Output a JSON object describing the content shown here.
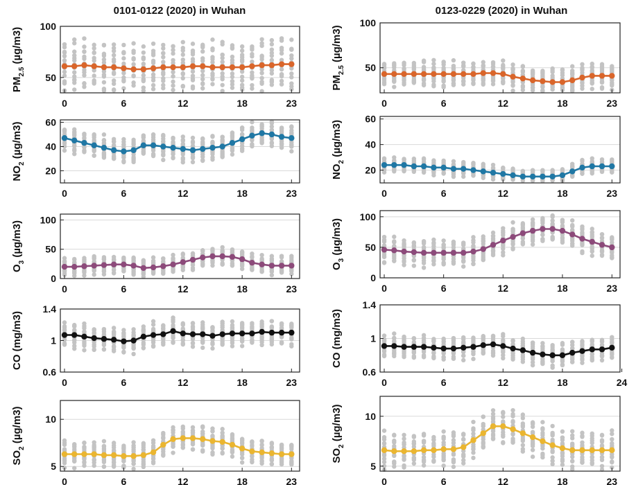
{
  "chart_data": [
    {
      "type": "line",
      "title": "0101-0122 (2020) in Wuhan",
      "ylabel_main": "PM",
      "ylabel_sub": "2.5",
      "ylabel_units": " (µg/m3)",
      "ylim": [
        35,
        100
      ],
      "yticks": [
        50,
        100
      ],
      "ytick_labels": [
        "50",
        "100"
      ],
      "xticks": [
        0,
        6,
        12,
        18,
        23
      ],
      "xtick_labels": [
        "0",
        "6",
        "12",
        "18",
        "23"
      ],
      "grid": true,
      "color": "#d9652a",
      "series": [
        {
          "x": [
            0,
            1,
            2,
            3,
            4,
            5,
            6,
            7,
            8,
            9,
            10,
            11,
            12,
            13,
            14,
            15,
            16,
            17,
            18,
            19,
            20,
            21,
            22,
            23
          ],
          "values": [
            61,
            61,
            62,
            61,
            60,
            60,
            59,
            58,
            58,
            59,
            60,
            60,
            60,
            61,
            61,
            60,
            60,
            60,
            60,
            61,
            62,
            62,
            63,
            63
          ]
        }
      ],
      "scatter_spread": 22
    },
    {
      "type": "line",
      "title": "0123-0229 (2020) in Wuhan",
      "ylabel_main": "PM",
      "ylabel_sub": "2.5",
      "ylabel_units": " (µg/m3)",
      "ylim": [
        22,
        100
      ],
      "yticks": [
        50,
        100
      ],
      "ytick_labels": [
        "50",
        "100"
      ],
      "xticks": [
        0,
        6,
        12,
        18,
        23
      ],
      "xtick_labels": [
        "0",
        "6",
        "12",
        "18",
        "23"
      ],
      "grid": true,
      "color": "#d9652a",
      "series": [
        {
          "x": [
            0,
            1,
            2,
            3,
            4,
            5,
            6,
            7,
            8,
            9,
            10,
            11,
            12,
            13,
            14,
            15,
            16,
            17,
            18,
            19,
            20,
            21,
            22,
            23
          ],
          "values": [
            43,
            43,
            43,
            43,
            43,
            43,
            43,
            43,
            43,
            43,
            44,
            44,
            43,
            40,
            38,
            36,
            35,
            34,
            34,
            36,
            39,
            41,
            41,
            41
          ]
        }
      ],
      "scatter_spread": 13
    },
    {
      "type": "line",
      "title": "",
      "ylabel_main": "NO",
      "ylabel_sub": "2",
      "ylabel_units": " (µg/m3)",
      "ylim": [
        10,
        62
      ],
      "yticks": [
        20,
        40,
        60
      ],
      "ytick_labels": [
        "20",
        "40",
        "60"
      ],
      "xticks": [
        0,
        6,
        12,
        18,
        23
      ],
      "xtick_labels": [
        "0",
        "6",
        "12",
        "18",
        "23"
      ],
      "grid": true,
      "color": "#1f77a4",
      "series": [
        {
          "x": [
            0,
            1,
            2,
            3,
            4,
            5,
            6,
            7,
            8,
            9,
            10,
            11,
            12,
            13,
            14,
            15,
            16,
            17,
            18,
            19,
            20,
            21,
            22,
            23
          ],
          "values": [
            47,
            45,
            43,
            41,
            39,
            37,
            36,
            37,
            41,
            41,
            40,
            39,
            38,
            37,
            38,
            39,
            40,
            43,
            46,
            49,
            51,
            50,
            48,
            47
          ]
        }
      ],
      "scatter_spread": 9
    },
    {
      "type": "line",
      "title": "",
      "ylabel_main": "NO",
      "ylabel_sub": "2",
      "ylabel_units": " (µg/m3)",
      "ylim": [
        10,
        62
      ],
      "yticks": [
        20,
        40,
        60
      ],
      "ytick_labels": [
        "20",
        "40",
        "60"
      ],
      "xticks": [
        0,
        6,
        12,
        18,
        23
      ],
      "xtick_labels": [
        "0",
        "6",
        "12",
        "18",
        "23"
      ],
      "grid": true,
      "color": "#1f77a4",
      "series": [
        {
          "x": [
            0,
            1,
            2,
            3,
            4,
            5,
            6,
            7,
            8,
            9,
            10,
            11,
            12,
            13,
            14,
            15,
            16,
            17,
            18,
            19,
            20,
            21,
            22,
            23
          ],
          "values": [
            24,
            24,
            24,
            23,
            23,
            22,
            22,
            21,
            21,
            20,
            19,
            18,
            17,
            16,
            15,
            15,
            15,
            15,
            16,
            19,
            22,
            23,
            23,
            23
          ]
        }
      ],
      "scatter_spread": 5
    },
    {
      "type": "line",
      "title": "",
      "ylabel_main": "O",
      "ylabel_sub": "3",
      "ylabel_units": " (µg/m3)",
      "ylim": [
        0,
        110
      ],
      "yticks": [
        0,
        50,
        100
      ],
      "ytick_labels": [
        "0",
        "50",
        "100"
      ],
      "xticks": [
        0,
        6,
        12,
        18,
        23
      ],
      "xtick_labels": [
        "0",
        "6",
        "12",
        "18",
        "23"
      ],
      "grid": true,
      "color": "#8c4a7a",
      "series": [
        {
          "x": [
            0,
            1,
            2,
            3,
            4,
            5,
            6,
            7,
            8,
            9,
            10,
            11,
            12,
            13,
            14,
            15,
            16,
            17,
            18,
            19,
            20,
            21,
            22,
            23
          ],
          "values": [
            20,
            20,
            21,
            22,
            23,
            24,
            24,
            22,
            18,
            19,
            21,
            24,
            28,
            32,
            36,
            38,
            38,
            37,
            33,
            27,
            24,
            22,
            22,
            22
          ]
        }
      ],
      "scatter_spread": 14
    },
    {
      "type": "line",
      "title": "",
      "ylabel_main": "O",
      "ylabel_sub": "3",
      "ylabel_units": " (µg/m3)",
      "ylim": [
        0,
        110
      ],
      "yticks": [
        0,
        50,
        100
      ],
      "ytick_labels": [
        "0",
        "50",
        "100"
      ],
      "xticks": [
        0,
        6,
        12,
        18,
        23
      ],
      "xtick_labels": [
        "0",
        "6",
        "12",
        "18",
        "23"
      ],
      "grid": true,
      "color": "#8c4a7a",
      "series": [
        {
          "x": [
            0,
            1,
            2,
            3,
            4,
            5,
            6,
            7,
            8,
            9,
            10,
            11,
            12,
            13,
            14,
            15,
            16,
            17,
            18,
            19,
            20,
            21,
            22,
            23
          ],
          "values": [
            46,
            45,
            43,
            42,
            41,
            41,
            41,
            41,
            41,
            43,
            47,
            54,
            61,
            67,
            73,
            77,
            80,
            80,
            77,
            71,
            64,
            59,
            54,
            50
          ]
        }
      ],
      "scatter_spread": 20
    },
    {
      "type": "line",
      "title": "",
      "ylabel_main": "CO",
      "ylabel_sub": "",
      "ylabel_units": " (mg/m3)",
      "ylim": [
        0.6,
        1.4
      ],
      "yticks": [
        0.6,
        1,
        1.4
      ],
      "ytick_labels": [
        "0.6",
        "1",
        "1.4"
      ],
      "xticks": [
        0,
        6,
        12,
        18,
        23
      ],
      "xtick_labels": [
        "0",
        "6",
        "12",
        "18",
        "23"
      ],
      "grid": true,
      "color": "#111111",
      "series": [
        {
          "x": [
            0,
            1,
            2,
            3,
            4,
            5,
            6,
            7,
            8,
            9,
            10,
            11,
            12,
            13,
            14,
            15,
            16,
            17,
            18,
            19,
            20,
            21,
            22,
            23
          ],
          "values": [
            1.07,
            1.07,
            1.05,
            1.03,
            1.02,
            1.01,
            0.99,
            1.0,
            1.05,
            1.07,
            1.08,
            1.12,
            1.09,
            1.08,
            1.08,
            1.06,
            1.08,
            1.09,
            1.09,
            1.09,
            1.11,
            1.1,
            1.1,
            1.1
          ]
        }
      ],
      "scatter_spread": 0.14
    },
    {
      "type": "line",
      "title": "",
      "ylabel_main": "CO",
      "ylabel_sub": "",
      "ylabel_units": " (mg/m3)",
      "ylim": [
        0.6,
        1.4
      ],
      "yticks": [
        0.6,
        1,
        1.4
      ],
      "ytick_labels": [
        "0.6",
        "1",
        "1.4"
      ],
      "xticks": [
        0,
        6,
        12,
        18,
        24
      ],
      "xtick_labels": [
        "0",
        "6",
        "12",
        "18",
        "24"
      ],
      "grid": true,
      "color": "#111111",
      "series": [
        {
          "x": [
            0,
            1,
            2,
            3,
            4,
            5,
            6,
            7,
            8,
            9,
            10,
            11,
            12,
            13,
            14,
            15,
            16,
            17,
            18,
            19,
            20,
            21,
            22,
            23
          ],
          "values": [
            0.91,
            0.91,
            0.9,
            0.9,
            0.9,
            0.89,
            0.88,
            0.88,
            0.89,
            0.9,
            0.92,
            0.93,
            0.91,
            0.88,
            0.86,
            0.83,
            0.81,
            0.8,
            0.8,
            0.83,
            0.85,
            0.87,
            0.87,
            0.89
          ]
        }
      ],
      "scatter_spread": 0.12
    },
    {
      "type": "line",
      "title": "",
      "ylabel_main": "SO",
      "ylabel_sub": "2",
      "ylabel_units": " (µg/m3)",
      "ylim": [
        4.5,
        12
      ],
      "yticks": [
        5,
        10
      ],
      "ytick_labels": [
        "5",
        "10"
      ],
      "xticks": [
        0,
        6,
        12,
        18,
        23
      ],
      "xtick_labels": [
        "0",
        "6",
        "12",
        "18",
        "23"
      ],
      "grid": true,
      "color": "#eab530",
      "series": [
        {
          "x": [
            0,
            1,
            2,
            3,
            4,
            5,
            6,
            7,
            8,
            9,
            10,
            11,
            12,
            13,
            14,
            15,
            16,
            17,
            18,
            19,
            20,
            21,
            22,
            23
          ],
          "values": [
            6.3,
            6.3,
            6.3,
            6.3,
            6.2,
            6.2,
            6.1,
            6.1,
            6.2,
            6.5,
            7.3,
            7.9,
            8.0,
            8.0,
            7.9,
            7.7,
            7.6,
            7.3,
            6.9,
            6.6,
            6.5,
            6.4,
            6.3,
            6.3
          ]
        }
      ],
      "scatter_spread": 1.2
    },
    {
      "type": "line",
      "title": "",
      "ylabel_main": "SO",
      "ylabel_sub": "2",
      "ylabel_units": " (µg/m3)",
      "ylim": [
        4.5,
        12
      ],
      "yticks": [
        5,
        10
      ],
      "ytick_labels": [
        "5",
        "10"
      ],
      "xticks": [
        0,
        6,
        12,
        18,
        23
      ],
      "xtick_labels": [
        "0",
        "6",
        "12",
        "18",
        "23"
      ],
      "grid": true,
      "color": "#eab530",
      "series": [
        {
          "x": [
            0,
            1,
            2,
            3,
            4,
            5,
            6,
            7,
            8,
            9,
            10,
            11,
            12,
            13,
            14,
            15,
            16,
            17,
            18,
            19,
            20,
            21,
            22,
            23
          ],
          "values": [
            6.6,
            6.5,
            6.5,
            6.5,
            6.6,
            6.6,
            6.7,
            6.7,
            6.9,
            7.6,
            8.3,
            9.0,
            9.0,
            8.7,
            8.3,
            7.9,
            7.5,
            7.1,
            6.8,
            6.6,
            6.6,
            6.6,
            6.6,
            6.6
          ]
        }
      ],
      "scatter_spread": 1.6
    }
  ]
}
